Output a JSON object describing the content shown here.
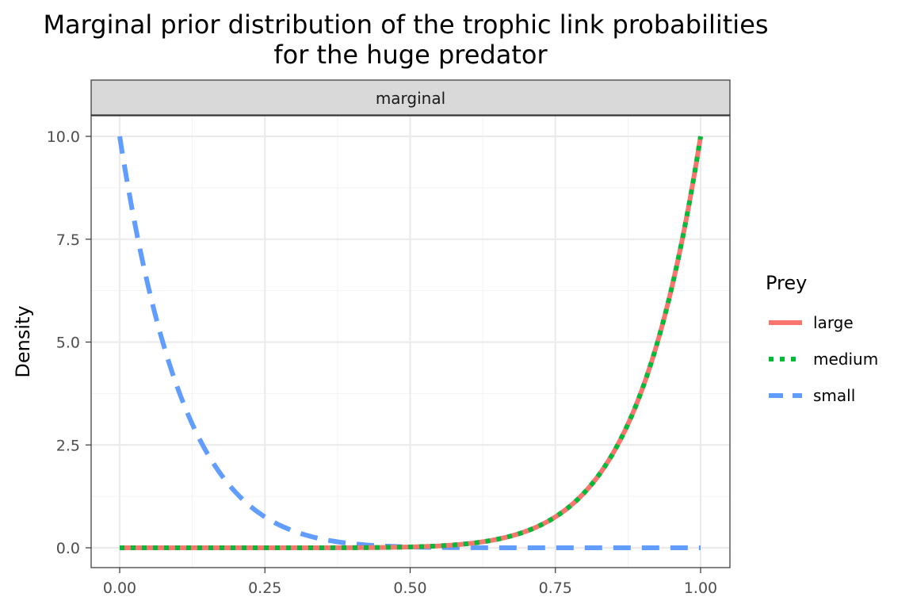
{
  "chart_data": {
    "type": "line",
    "title_line1": "Marginal prior distribution of the trophic link probabilities",
    "title_line2": "for the huge predator",
    "facet_label": "marginal",
    "xlabel": "",
    "ylabel": "Density",
    "xlim": [
      0,
      1
    ],
    "ylim": [
      0,
      10
    ],
    "x_ticks": [
      "0.00",
      "0.25",
      "0.50",
      "0.75",
      "1.00"
    ],
    "y_ticks": [
      "0.0",
      "2.5",
      "5.0",
      "7.5",
      "10.0"
    ],
    "grid": true,
    "legend": {
      "title": "Prey",
      "position": "right",
      "entries": [
        "large",
        "medium",
        "small"
      ]
    },
    "series": [
      {
        "name": "large",
        "distribution": "Beta(10, 1)",
        "color": "#F8766D",
        "linestyle": "solid",
        "x": [
          0,
          0.1,
          0.2,
          0.3,
          0.4,
          0.5,
          0.6,
          0.7,
          0.75,
          0.8,
          0.85,
          0.9,
          0.95,
          1.0
        ],
        "y": [
          0,
          0.0,
          0.0,
          0.0,
          0.0026,
          0.0195,
          0.1008,
          0.4035,
          0.7508,
          1.3422,
          2.3162,
          3.8742,
          6.3025,
          10.0
        ]
      },
      {
        "name": "medium",
        "distribution": "Beta(10, 1)",
        "color": "#00BA38",
        "linestyle": "dotted",
        "x": [
          0,
          0.1,
          0.2,
          0.3,
          0.4,
          0.5,
          0.6,
          0.7,
          0.75,
          0.8,
          0.85,
          0.9,
          0.95,
          1.0
        ],
        "y": [
          0,
          0.0,
          0.0,
          0.0,
          0.0026,
          0.0195,
          0.1008,
          0.4035,
          0.7508,
          1.3422,
          2.3162,
          3.8742,
          6.3025,
          10.0
        ]
      },
      {
        "name": "small",
        "distribution": "Beta(1, 10)",
        "color": "#619CFF",
        "linestyle": "dashed",
        "x": [
          0,
          0.05,
          0.1,
          0.15,
          0.2,
          0.25,
          0.3,
          0.35,
          0.4,
          0.5,
          0.6,
          0.8,
          1.0
        ],
        "y": [
          10.0,
          6.302,
          3.874,
          2.316,
          1.342,
          0.751,
          0.404,
          0.207,
          0.101,
          0.0195,
          0.0026,
          0.0,
          0.0
        ]
      }
    ]
  },
  "colors": {
    "large": "#F8766D",
    "medium": "#00BA38",
    "small": "#619CFF",
    "strip_fill": "#D9D9D9",
    "grid_major": "#EBEBEB",
    "grid_minor": "#F3F3F3",
    "panel_border": "#333333"
  }
}
